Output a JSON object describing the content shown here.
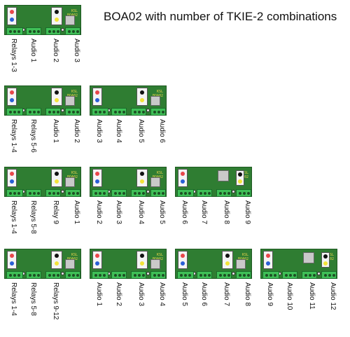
{
  "title": "BOA02 with number of TKIE-2 combinations",
  "board": {
    "label_line1": "KSL",
    "label_line2": "BOA02"
  },
  "colors": {
    "board": "#2f7d32",
    "terminal": "#3fbf57",
    "led_red": "#e8474b",
    "led_blue": "#2a5fd6",
    "led_yellow": "#f3e33a",
    "led_black": "#111111"
  },
  "rows": [
    {
      "boards": [
        {
          "module": "rb",
          "labels": [
            "Relays 1-3",
            "Audio 1",
            "Audio 2",
            "Audio 3"
          ]
        }
      ]
    },
    {
      "boards": [
        {
          "module": "rb",
          "labels": [
            "Relays 1-4",
            "Relays 5-6",
            "Audio 1",
            "Audio 2"
          ]
        },
        {
          "module": "rb",
          "labels": [
            "Audio 3",
            "Audio 4",
            "Audio 5",
            "Audio 6"
          ]
        }
      ]
    },
    {
      "boards": [
        {
          "module": "rb",
          "labels": [
            "Relays 1-4",
            "Relays 5-8",
            "Relay 9",
            "Audio 1"
          ]
        },
        {
          "module": "rb",
          "labels": [
            "Audio 2",
            "Audio 3",
            "Audio 4",
            "Audio 5"
          ]
        },
        {
          "module": "ry",
          "labels": [
            "Audio 6",
            "Audio 7",
            "Audio 8",
            "Audio 9"
          ]
        }
      ]
    },
    {
      "boards": [
        {
          "module": "rb",
          "labels": [
            "Relays 1-4",
            "Relays 5-8",
            "Relays 9-12"
          ]
        },
        {
          "module": "rb",
          "labels": [
            "Audio 1",
            "Audio 2",
            "Audio 3",
            "Audio 4"
          ]
        },
        {
          "module": "rb",
          "labels": [
            "Audio 5",
            "Audio 6",
            "Audio 7",
            "Audio 8"
          ]
        },
        {
          "module": "ry",
          "labels": [
            "Audio 9",
            "Audio 10",
            "Audio 11",
            "Audio 12"
          ]
        }
      ]
    }
  ]
}
